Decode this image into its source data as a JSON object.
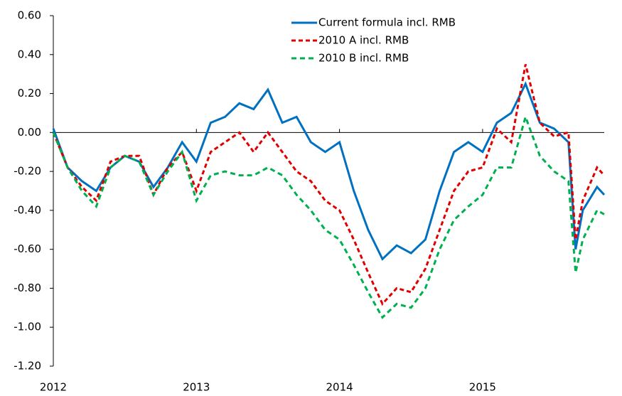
{
  "chart_data": {
    "type": "line",
    "x": [
      2012.0,
      2012.1,
      2012.2,
      2012.3,
      2012.4,
      2012.5,
      2012.6,
      2012.7,
      2012.8,
      2012.9,
      2013.0,
      2013.1,
      2013.2,
      2013.3,
      2013.4,
      2013.5,
      2013.6,
      2013.7,
      2013.8,
      2013.9,
      2014.0,
      2014.1,
      2014.2,
      2014.3,
      2014.4,
      2014.5,
      2014.6,
      2014.7,
      2014.8,
      2014.9,
      2015.0,
      2015.1,
      2015.2,
      2015.3,
      2015.4,
      2015.5,
      2015.6,
      2015.65,
      2015.7,
      2015.8,
      2015.85
    ],
    "series": [
      {
        "name": "Current formula incl. RMB",
        "color": "#0070c0",
        "dash": "none",
        "values": [
          0.02,
          -0.18,
          -0.25,
          -0.3,
          -0.18,
          -0.12,
          -0.15,
          -0.28,
          -0.18,
          -0.05,
          -0.15,
          0.05,
          0.08,
          0.15,
          0.12,
          0.22,
          0.05,
          0.08,
          -0.05,
          -0.1,
          -0.05,
          -0.3,
          -0.5,
          -0.65,
          -0.58,
          -0.62,
          -0.55,
          -0.3,
          -0.1,
          -0.05,
          -0.1,
          0.05,
          0.1,
          0.25,
          0.05,
          0.02,
          -0.05,
          -0.6,
          -0.4,
          -0.28,
          -0.32
        ]
      },
      {
        "name": "2010 A incl. RMB",
        "color": "#e00000",
        "dash": "6 4",
        "values": [
          0.0,
          -0.18,
          -0.28,
          -0.35,
          -0.15,
          -0.12,
          -0.12,
          -0.32,
          -0.18,
          -0.1,
          -0.3,
          -0.1,
          -0.05,
          0.0,
          -0.1,
          0.0,
          -0.1,
          -0.2,
          -0.25,
          -0.35,
          -0.4,
          -0.55,
          -0.72,
          -0.88,
          -0.8,
          -0.82,
          -0.7,
          -0.5,
          -0.3,
          -0.2,
          -0.18,
          0.02,
          -0.05,
          0.35,
          0.05,
          -0.02,
          0.0,
          -0.55,
          -0.35,
          -0.18,
          -0.22
        ]
      },
      {
        "name": "2010 B incl. RMB",
        "color": "#00b050",
        "dash": "7 5",
        "values": [
          0.0,
          -0.18,
          -0.3,
          -0.38,
          -0.18,
          -0.12,
          -0.15,
          -0.32,
          -0.2,
          -0.1,
          -0.35,
          -0.22,
          -0.2,
          -0.22,
          -0.22,
          -0.18,
          -0.22,
          -0.32,
          -0.4,
          -0.5,
          -0.55,
          -0.68,
          -0.82,
          -0.95,
          -0.88,
          -0.9,
          -0.8,
          -0.6,
          -0.45,
          -0.38,
          -0.32,
          -0.18,
          -0.18,
          0.08,
          -0.12,
          -0.2,
          -0.25,
          -0.72,
          -0.55,
          -0.4,
          -0.42
        ]
      }
    ],
    "xlim": [
      2012,
      2015.85
    ],
    "xticks": [
      2012,
      2013,
      2014,
      2015
    ],
    "ylim": [
      -1.2,
      0.6
    ],
    "yticks": [
      {
        "value": -1.2,
        "label": "-1.20"
      },
      {
        "value": -1.0,
        "label": "-1.00"
      },
      {
        "value": -0.8,
        "label": "-0.80"
      },
      {
        "value": -0.6,
        "label": "-0.60"
      },
      {
        "value": -0.4,
        "label": "-0.40"
      },
      {
        "value": -0.2,
        "label": "-0.20"
      },
      {
        "value": 0,
        "label": "0.00"
      },
      {
        "value": 0.2,
        "label": "0.20"
      },
      {
        "value": 0.4,
        "label": "0.40"
      },
      {
        "value": 0.6,
        "label": "0.60"
      }
    ],
    "legend": "top-center"
  }
}
